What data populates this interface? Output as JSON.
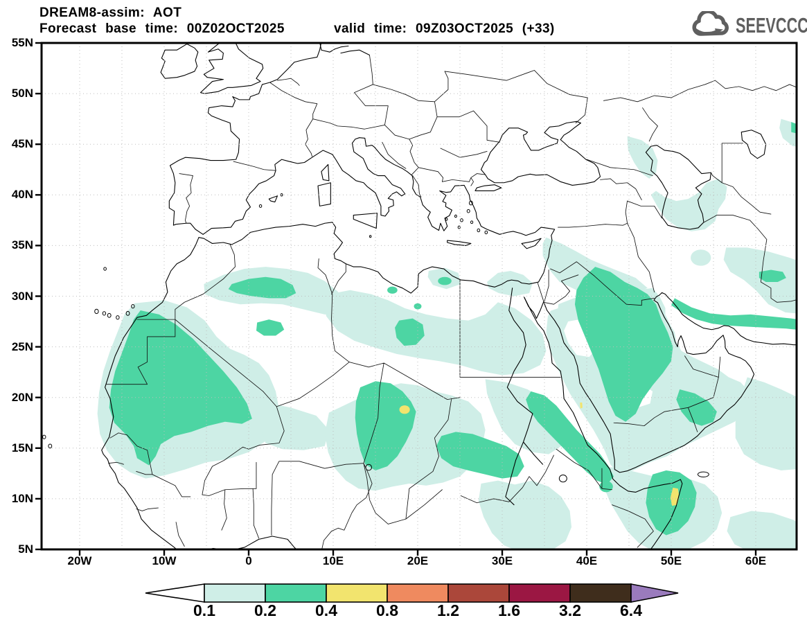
{
  "header": {
    "title": "DREAM8-assim: AOT",
    "base_time": "Forecast base time: 00Z02OCT2025",
    "valid_time": "valid time: 09Z03OCT2025 (+33)"
  },
  "logo": {
    "text": "SEEVCCC",
    "color": "#5f5f5f"
  },
  "axes": {
    "lon_ticks": [
      {
        "label": "20W",
        "deg": -20
      },
      {
        "label": "10W",
        "deg": -10
      },
      {
        "label": "0",
        "deg": 0
      },
      {
        "label": "10E",
        "deg": 10
      },
      {
        "label": "20E",
        "deg": 20
      },
      {
        "label": "30E",
        "deg": 30
      },
      {
        "label": "40E",
        "deg": 40
      },
      {
        "label": "50E",
        "deg": 50
      },
      {
        "label": "60E",
        "deg": 60
      }
    ],
    "lat_ticks": [
      {
        "label": "55N",
        "deg": 55
      },
      {
        "label": "50N",
        "deg": 50
      },
      {
        "label": "45N",
        "deg": 45
      },
      {
        "label": "40N",
        "deg": 40
      },
      {
        "label": "35N",
        "deg": 35
      },
      {
        "label": "30N",
        "deg": 30
      },
      {
        "label": "25N",
        "deg": 25
      },
      {
        "label": "20N",
        "deg": 20
      },
      {
        "label": "15N",
        "deg": 15
      },
      {
        "label": "10N",
        "deg": 10
      },
      {
        "label": "5N",
        "deg": 5
      }
    ],
    "grid_step_deg": 5,
    "grid_lon_range": [
      -20,
      60
    ],
    "grid_lat_range": [
      10,
      50
    ],
    "visible_extent": {
      "lon_min": -24.5,
      "lon_max": 64.8,
      "lat_min": 5,
      "lat_max": 55
    }
  },
  "colorbar": {
    "boundary_labels": [
      "0.1",
      "0.2",
      "0.4",
      "0.8",
      "1.2",
      "1.6",
      "3.2",
      "6.4"
    ],
    "colors": {
      "under": "#ffffff",
      "segments": [
        "#cfeee7",
        "#4dd5a3",
        "#f2e46e",
        "#ef8a5f",
        "#ab473a",
        "#9b1743",
        "#3f2d1c"
      ],
      "over": "#9a7bbd"
    }
  },
  "map_fill_levels": {
    "0.1-0.2": "#cfeee7",
    "0.2-0.4": "#4dd5a3",
    "0.4-0.8": "#f2e46e"
  },
  "aot_features": [
    {
      "area": "West Africa (Mauritania / Mali / Senegal)",
      "level": "0.2-0.4 core in broad 0.1-0.2 plume"
    },
    {
      "area": "Northern Algeria",
      "level": "0.2-0.4"
    },
    {
      "area": "Central Libya (~19E 26N)",
      "level": "0.2-0.4"
    },
    {
      "area": "Chad / Niger (~18E 19N)",
      "level": "0.4-0.8 spot inside 0.2-0.4 blob"
    },
    {
      "area": "Sudan belt (~24-32E 13-16N)",
      "level": "0.2-0.4"
    },
    {
      "area": "Red Sea / Eritrea coast",
      "level": "0.2-0.4 with tiny 0.4-0.8 sliver near 40E 19N"
    },
    {
      "area": "Iraq / Syria plume",
      "level": "0.1-0.2 with 0.2-0.4 over Iraq"
    },
    {
      "area": "Central Arabian Peninsula / Gulf coast",
      "level": "0.2-0.4"
    },
    {
      "area": "Iranian Makran coast (26-28N)",
      "level": "0.2-0.4"
    },
    {
      "area": "Horn of Africa / Somalia (~50E 10N)",
      "level": "0.4-0.8 spot inside 0.2-0.4"
    },
    {
      "area": "South Caspian and NW Caspian shore",
      "level": "0.1-0.2"
    }
  ]
}
